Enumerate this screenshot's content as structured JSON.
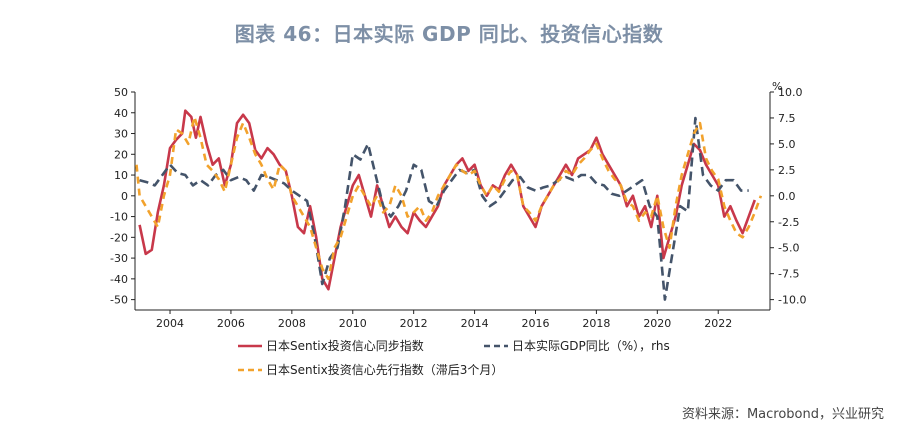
{
  "title": "图表 46：日本实际 GDP 同比、投资信心指数",
  "source": "资料来源：Macrobond，兴业研究",
  "colors": {
    "series1": "#c8384a",
    "series2": "#44546a",
    "series3": "#f2a22c",
    "title": "#7d8fa6"
  },
  "chart_data": {
    "type": "line",
    "right_axis_unit": "%",
    "x_ticks": [
      "2004",
      "2006",
      "2008",
      "2010",
      "2012",
      "2014",
      "2016",
      "2018",
      "2020",
      "2022"
    ],
    "xlim": [
      2002.85,
      2023.7
    ],
    "y_left": {
      "ylim": [
        -55,
        50
      ],
      "ticks": [
        "50",
        "40",
        "30",
        "20",
        "10",
        "0",
        "-10",
        "-20",
        "-30",
        "-40",
        "-50"
      ]
    },
    "y_right": {
      "ylim": [
        -11,
        10
      ],
      "ticks": [
        "10.0",
        "7.5",
        "5.0",
        "2.5",
        "0.0",
        "-2.5",
        "-5.0",
        "-7.5",
        "-10.0"
      ]
    },
    "legend": [
      "日本Sentix投资信心同步指数",
      "日本实际GDP同比（%），rhs",
      "日本Sentix投资信心先行指数（滞后3个月）"
    ],
    "series": [
      {
        "name": "日本Sentix投资信心同步指数",
        "axis": "left",
        "style": "solid",
        "points": [
          [
            2003.0,
            -14
          ],
          [
            2003.2,
            -28
          ],
          [
            2003.4,
            -26
          ],
          [
            2003.6,
            -8
          ],
          [
            2003.8,
            5
          ],
          [
            2004.0,
            23
          ],
          [
            2004.2,
            27
          ],
          [
            2004.4,
            30
          ],
          [
            2004.5,
            41
          ],
          [
            2004.7,
            38
          ],
          [
            2004.85,
            28
          ],
          [
            2005.0,
            38
          ],
          [
            2005.2,
            25
          ],
          [
            2005.4,
            15
          ],
          [
            2005.6,
            18
          ],
          [
            2005.8,
            5
          ],
          [
            2006.0,
            15
          ],
          [
            2006.2,
            35
          ],
          [
            2006.4,
            39
          ],
          [
            2006.6,
            35
          ],
          [
            2006.8,
            22
          ],
          [
            2007.0,
            18
          ],
          [
            2007.2,
            23
          ],
          [
            2007.4,
            20
          ],
          [
            2007.6,
            15
          ],
          [
            2007.8,
            12
          ],
          [
            2008.0,
            0
          ],
          [
            2008.2,
            -15
          ],
          [
            2008.4,
            -18
          ],
          [
            2008.6,
            -5
          ],
          [
            2008.8,
            -20
          ],
          [
            2009.0,
            -40
          ],
          [
            2009.2,
            -45
          ],
          [
            2009.4,
            -30
          ],
          [
            2009.6,
            -15
          ],
          [
            2009.8,
            -5
          ],
          [
            2010.0,
            5
          ],
          [
            2010.2,
            10
          ],
          [
            2010.4,
            0
          ],
          [
            2010.6,
            -10
          ],
          [
            2010.8,
            5
          ],
          [
            2011.0,
            -5
          ],
          [
            2011.2,
            -15
          ],
          [
            2011.4,
            -10
          ],
          [
            2011.6,
            -15
          ],
          [
            2011.8,
            -18
          ],
          [
            2012.0,
            -8
          ],
          [
            2012.2,
            -12
          ],
          [
            2012.4,
            -15
          ],
          [
            2012.6,
            -10
          ],
          [
            2012.8,
            -5
          ],
          [
            2013.0,
            5
          ],
          [
            2013.2,
            10
          ],
          [
            2013.4,
            15
          ],
          [
            2013.6,
            18
          ],
          [
            2013.8,
            12
          ],
          [
            2014.0,
            15
          ],
          [
            2014.2,
            5
          ],
          [
            2014.4,
            0
          ],
          [
            2014.6,
            5
          ],
          [
            2014.8,
            3
          ],
          [
            2015.0,
            10
          ],
          [
            2015.2,
            15
          ],
          [
            2015.4,
            10
          ],
          [
            2015.6,
            -5
          ],
          [
            2015.8,
            -10
          ],
          [
            2016.0,
            -15
          ],
          [
            2016.2,
            -5
          ],
          [
            2016.4,
            0
          ],
          [
            2016.6,
            5
          ],
          [
            2016.8,
            10
          ],
          [
            2017.0,
            15
          ],
          [
            2017.2,
            10
          ],
          [
            2017.4,
            18
          ],
          [
            2017.6,
            20
          ],
          [
            2017.8,
            22
          ],
          [
            2018.0,
            28
          ],
          [
            2018.2,
            20
          ],
          [
            2018.4,
            15
          ],
          [
            2018.6,
            10
          ],
          [
            2018.8,
            5
          ],
          [
            2019.0,
            -5
          ],
          [
            2019.2,
            0
          ],
          [
            2019.4,
            -10
          ],
          [
            2019.6,
            -5
          ],
          [
            2019.8,
            -15
          ],
          [
            2020.0,
            0
          ],
          [
            2020.2,
            -30
          ],
          [
            2020.4,
            -20
          ],
          [
            2020.6,
            -10
          ],
          [
            2020.8,
            5
          ],
          [
            2021.0,
            15
          ],
          [
            2021.2,
            25
          ],
          [
            2021.4,
            22
          ],
          [
            2021.6,
            15
          ],
          [
            2021.8,
            10
          ],
          [
            2022.0,
            5
          ],
          [
            2022.2,
            -10
          ],
          [
            2022.4,
            -5
          ],
          [
            2022.6,
            -12
          ],
          [
            2022.8,
            -18
          ],
          [
            2023.0,
            -10
          ],
          [
            2023.2,
            -2
          ]
        ]
      },
      {
        "name": "日本实际GDP同比（%），rhs",
        "axis": "right",
        "style": "dashed",
        "points": [
          [
            2003.0,
            1.5
          ],
          [
            2003.25,
            1.3
          ],
          [
            2003.5,
            1.0
          ],
          [
            2003.75,
            2.0
          ],
          [
            2004.0,
            3.0
          ],
          [
            2004.25,
            2.2
          ],
          [
            2004.5,
            2.0
          ],
          [
            2004.75,
            1.0
          ],
          [
            2005.0,
            1.5
          ],
          [
            2005.25,
            1.0
          ],
          [
            2005.5,
            2.0
          ],
          [
            2005.75,
            2.5
          ],
          [
            2006.0,
            1.5
          ],
          [
            2006.25,
            1.8
          ],
          [
            2006.5,
            1.5
          ],
          [
            2006.75,
            0.5
          ],
          [
            2007.0,
            2.0
          ],
          [
            2007.25,
            1.8
          ],
          [
            2007.5,
            1.5
          ],
          [
            2007.75,
            1.2
          ],
          [
            2008.0,
            0.5
          ],
          [
            2008.25,
            0.0
          ],
          [
            2008.5,
            -0.5
          ],
          [
            2008.75,
            -4.0
          ],
          [
            2009.0,
            -8.5
          ],
          [
            2009.25,
            -6.0
          ],
          [
            2009.5,
            -5.0
          ],
          [
            2009.75,
            -1.0
          ],
          [
            2010.0,
            4.0
          ],
          [
            2010.25,
            3.5
          ],
          [
            2010.5,
            5.0
          ],
          [
            2010.75,
            2.0
          ],
          [
            2011.0,
            -1.0
          ],
          [
            2011.25,
            -2.0
          ],
          [
            2011.5,
            -1.0
          ],
          [
            2011.75,
            0.5
          ],
          [
            2012.0,
            3.0
          ],
          [
            2012.25,
            2.5
          ],
          [
            2012.5,
            -0.5
          ],
          [
            2012.75,
            -1.0
          ],
          [
            2013.0,
            0.5
          ],
          [
            2013.25,
            1.5
          ],
          [
            2013.5,
            2.5
          ],
          [
            2013.75,
            2.2
          ],
          [
            2014.0,
            2.5
          ],
          [
            2014.25,
            0.0
          ],
          [
            2014.5,
            -1.0
          ],
          [
            2014.75,
            -0.5
          ],
          [
            2015.0,
            0.5
          ],
          [
            2015.25,
            1.5
          ],
          [
            2015.5,
            1.8
          ],
          [
            2015.75,
            0.8
          ],
          [
            2016.0,
            0.5
          ],
          [
            2016.25,
            0.8
          ],
          [
            2016.5,
            1.0
          ],
          [
            2016.75,
            1.5
          ],
          [
            2017.0,
            1.8
          ],
          [
            2017.25,
            1.5
          ],
          [
            2017.5,
            2.0
          ],
          [
            2017.75,
            2.0
          ],
          [
            2018.0,
            1.2
          ],
          [
            2018.25,
            1.0
          ],
          [
            2018.5,
            0.2
          ],
          [
            2018.75,
            0.0
          ],
          [
            2019.0,
            0.5
          ],
          [
            2019.25,
            1.0
          ],
          [
            2019.5,
            1.5
          ],
          [
            2019.75,
            -1.0
          ],
          [
            2020.0,
            -2.0
          ],
          [
            2020.25,
            -10.0
          ],
          [
            2020.5,
            -5.5
          ],
          [
            2020.75,
            -1.0
          ],
          [
            2021.0,
            -1.5
          ],
          [
            2021.25,
            7.5
          ],
          [
            2021.5,
            2.0
          ],
          [
            2021.75,
            1.0
          ],
          [
            2022.0,
            0.5
          ],
          [
            2022.25,
            1.5
          ],
          [
            2022.5,
            1.5
          ],
          [
            2022.75,
            0.5
          ],
          [
            2023.0,
            0.5
          ]
        ]
      },
      {
        "name": "日本Sentix投资信心先行指数（滞后3个月）",
        "axis": "left",
        "style": "dashed",
        "points": [
          [
            2002.9,
            15
          ],
          [
            2003.0,
            0
          ],
          [
            2003.2,
            -5
          ],
          [
            2003.4,
            -10
          ],
          [
            2003.6,
            -15
          ],
          [
            2003.8,
            0
          ],
          [
            2004.0,
            10
          ],
          [
            2004.2,
            32
          ],
          [
            2004.4,
            30
          ],
          [
            2004.6,
            25
          ],
          [
            2004.8,
            38
          ],
          [
            2005.0,
            28
          ],
          [
            2005.2,
            15
          ],
          [
            2005.4,
            12
          ],
          [
            2005.6,
            8
          ],
          [
            2005.8,
            2
          ],
          [
            2006.0,
            15
          ],
          [
            2006.2,
            28
          ],
          [
            2006.4,
            35
          ],
          [
            2006.6,
            28
          ],
          [
            2006.8,
            20
          ],
          [
            2007.0,
            15
          ],
          [
            2007.2,
            8
          ],
          [
            2007.4,
            3
          ],
          [
            2007.6,
            15
          ],
          [
            2007.8,
            12
          ],
          [
            2008.0,
            0
          ],
          [
            2008.2,
            -5
          ],
          [
            2008.4,
            -10
          ],
          [
            2008.6,
            -15
          ],
          [
            2008.8,
            -25
          ],
          [
            2009.0,
            -35
          ],
          [
            2009.2,
            -40
          ],
          [
            2009.4,
            -25
          ],
          [
            2009.6,
            -20
          ],
          [
            2009.8,
            -10
          ],
          [
            2010.0,
            0
          ],
          [
            2010.2,
            5
          ],
          [
            2010.4,
            0
          ],
          [
            2010.6,
            -5
          ],
          [
            2010.8,
            0
          ],
          [
            2011.0,
            -8
          ],
          [
            2011.2,
            -5
          ],
          [
            2011.4,
            5
          ],
          [
            2011.6,
            0
          ],
          [
            2011.8,
            -10
          ],
          [
            2012.0,
            -8
          ],
          [
            2012.2,
            -5
          ],
          [
            2012.4,
            -12
          ],
          [
            2012.6,
            -8
          ],
          [
            2012.8,
            0
          ],
          [
            2013.0,
            5
          ],
          [
            2013.2,
            10
          ],
          [
            2013.4,
            15
          ],
          [
            2013.6,
            12
          ],
          [
            2013.8,
            10
          ],
          [
            2014.0,
            12
          ],
          [
            2014.2,
            5
          ],
          [
            2014.4,
            0
          ],
          [
            2014.6,
            5
          ],
          [
            2014.8,
            2
          ],
          [
            2015.0,
            8
          ],
          [
            2015.2,
            12
          ],
          [
            2015.4,
            10
          ],
          [
            2015.6,
            -5
          ],
          [
            2015.8,
            -8
          ],
          [
            2016.0,
            -12
          ],
          [
            2016.2,
            -5
          ],
          [
            2016.4,
            0
          ],
          [
            2016.6,
            5
          ],
          [
            2016.8,
            8
          ],
          [
            2017.0,
            12
          ],
          [
            2017.2,
            10
          ],
          [
            2017.4,
            15
          ],
          [
            2017.6,
            18
          ],
          [
            2017.8,
            22
          ],
          [
            2018.0,
            25
          ],
          [
            2018.2,
            18
          ],
          [
            2018.4,
            12
          ],
          [
            2018.6,
            8
          ],
          [
            2018.8,
            5
          ],
          [
            2019.0,
            -3
          ],
          [
            2019.2,
            -5
          ],
          [
            2019.4,
            -12
          ],
          [
            2019.6,
            -8
          ],
          [
            2019.8,
            -10
          ],
          [
            2020.0,
            0
          ],
          [
            2020.2,
            -15
          ],
          [
            2020.4,
            -25
          ],
          [
            2020.6,
            -5
          ],
          [
            2020.8,
            10
          ],
          [
            2021.0,
            20
          ],
          [
            2021.2,
            30
          ],
          [
            2021.4,
            35
          ],
          [
            2021.6,
            18
          ],
          [
            2021.8,
            12
          ],
          [
            2022.0,
            8
          ],
          [
            2022.2,
            -5
          ],
          [
            2022.4,
            -12
          ],
          [
            2022.6,
            -18
          ],
          [
            2022.8,
            -20
          ],
          [
            2023.0,
            -15
          ],
          [
            2023.2,
            -8
          ],
          [
            2023.4,
            0
          ]
        ]
      }
    ]
  }
}
